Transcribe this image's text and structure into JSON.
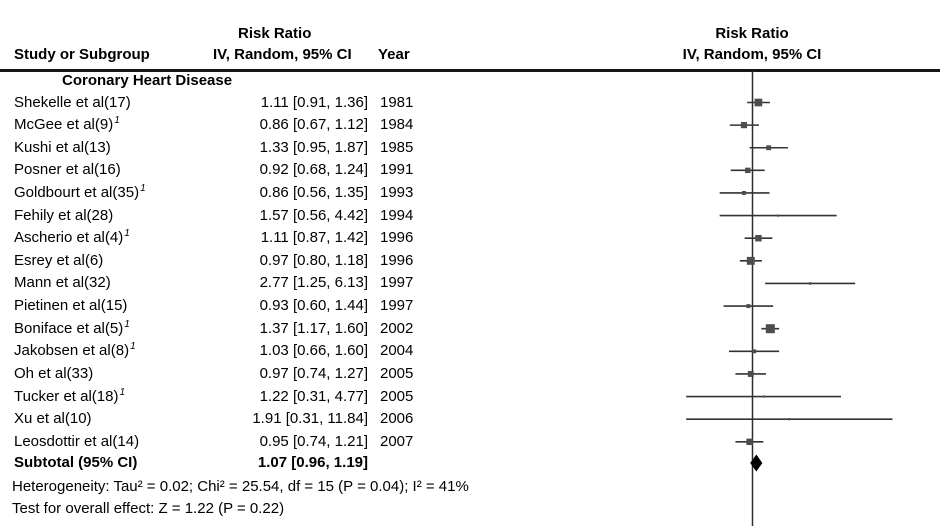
{
  "header": {
    "study_col": "Study or Subgroup",
    "effect_title": "Risk Ratio",
    "method_label": "IV, Random, 95% CI",
    "year_col": "Year"
  },
  "colors": {
    "text": "#000000",
    "rule": "#161616",
    "null_line": "#2d2d2d",
    "ci_line": "#333333",
    "marker": "#4d4d4d",
    "diamond": "#000000"
  },
  "chart_data": {
    "type": "forest",
    "effect_label": "Risk Ratio",
    "method_label": "IV, Random, 95% CI",
    "x_scale": "log",
    "null_line": 1,
    "subgroup": "Coronary Heart Disease",
    "studies": [
      {
        "name": "Shekelle et al(17)",
        "footnote": "",
        "rr": 1.11,
        "lo": 0.91,
        "hi": 1.36,
        "ci": "1.11 [0.91, 1.36]",
        "year": "1981"
      },
      {
        "name": "McGee et al(9)",
        "footnote": "1",
        "rr": 0.86,
        "lo": 0.67,
        "hi": 1.12,
        "ci": "0.86 [0.67, 1.12]",
        "year": "1984"
      },
      {
        "name": "Kushi et al(13)",
        "footnote": "",
        "rr": 1.33,
        "lo": 0.95,
        "hi": 1.87,
        "ci": "1.33 [0.95, 1.87]",
        "year": "1985"
      },
      {
        "name": "Posner et al(16)",
        "footnote": "",
        "rr": 0.92,
        "lo": 0.68,
        "hi": 1.24,
        "ci": "0.92 [0.68, 1.24]",
        "year": "1991"
      },
      {
        "name": "Goldbourt et al(35)",
        "footnote": "1",
        "rr": 0.86,
        "lo": 0.56,
        "hi": 1.35,
        "ci": "0.86 [0.56, 1.35]",
        "year": "1993"
      },
      {
        "name": "Fehily et al(28)",
        "footnote": "",
        "rr": 1.57,
        "lo": 0.56,
        "hi": 4.42,
        "ci": "1.57 [0.56, 4.42]",
        "year": "1994"
      },
      {
        "name": "Ascherio et al(4)",
        "footnote": "1",
        "rr": 1.11,
        "lo": 0.87,
        "hi": 1.42,
        "ci": "1.11 [0.87, 1.42]",
        "year": "1996"
      },
      {
        "name": "Esrey et al(6)",
        "footnote": "",
        "rr": 0.97,
        "lo": 0.8,
        "hi": 1.18,
        "ci": "0.97 [0.80, 1.18]",
        "year": "1996"
      },
      {
        "name": "Mann et al(32)",
        "footnote": "",
        "rr": 2.77,
        "lo": 1.25,
        "hi": 6.13,
        "ci": "2.77 [1.25, 6.13]",
        "year": "1997"
      },
      {
        "name": "Pietinen et al(15)",
        "footnote": "",
        "rr": 0.93,
        "lo": 0.6,
        "hi": 1.44,
        "ci": "0.93 [0.60, 1.44]",
        "year": "1997"
      },
      {
        "name": "Boniface et al(5)",
        "footnote": "1",
        "rr": 1.37,
        "lo": 1.17,
        "hi": 1.6,
        "ci": "1.37 [1.17, 1.60]",
        "year": "2002"
      },
      {
        "name": "Jakobsen et al(8)",
        "footnote": "1",
        "rr": 1.03,
        "lo": 0.66,
        "hi": 1.6,
        "ci": "1.03 [0.66, 1.60]",
        "year": "2004"
      },
      {
        "name": "Oh et al(33)",
        "footnote": "",
        "rr": 0.97,
        "lo": 0.74,
        "hi": 1.27,
        "ci": "0.97 [0.74, 1.27]",
        "year": "2005"
      },
      {
        "name": "Tucker et al(18)",
        "footnote": "1",
        "rr": 1.22,
        "lo": 0.31,
        "hi": 4.77,
        "ci": "1.22 [0.31, 4.77]",
        "year": "2005"
      },
      {
        "name": "Xu et al(10)",
        "footnote": "",
        "rr": 1.91,
        "lo": 0.31,
        "hi": 11.84,
        "ci": "1.91 [0.31, 11.84]",
        "year": "2006"
      },
      {
        "name": "Leosdottir et al(14)",
        "footnote": "",
        "rr": 0.95,
        "lo": 0.74,
        "hi": 1.21,
        "ci": "0.95 [0.74, 1.21]",
        "year": "2007"
      }
    ],
    "subtotal": {
      "label": "Subtotal (95% CI)",
      "rr": 1.07,
      "lo": 0.96,
      "hi": 1.19,
      "ci": "1.07 [0.96, 1.19]"
    },
    "heterogeneity": "Heterogeneity: Tau² = 0.02; Chi² = 25.54, df = 15 (P = 0.04); I² = 41%",
    "overall_effect": "Test for overall effect: Z = 1.22 (P = 0.22)"
  }
}
